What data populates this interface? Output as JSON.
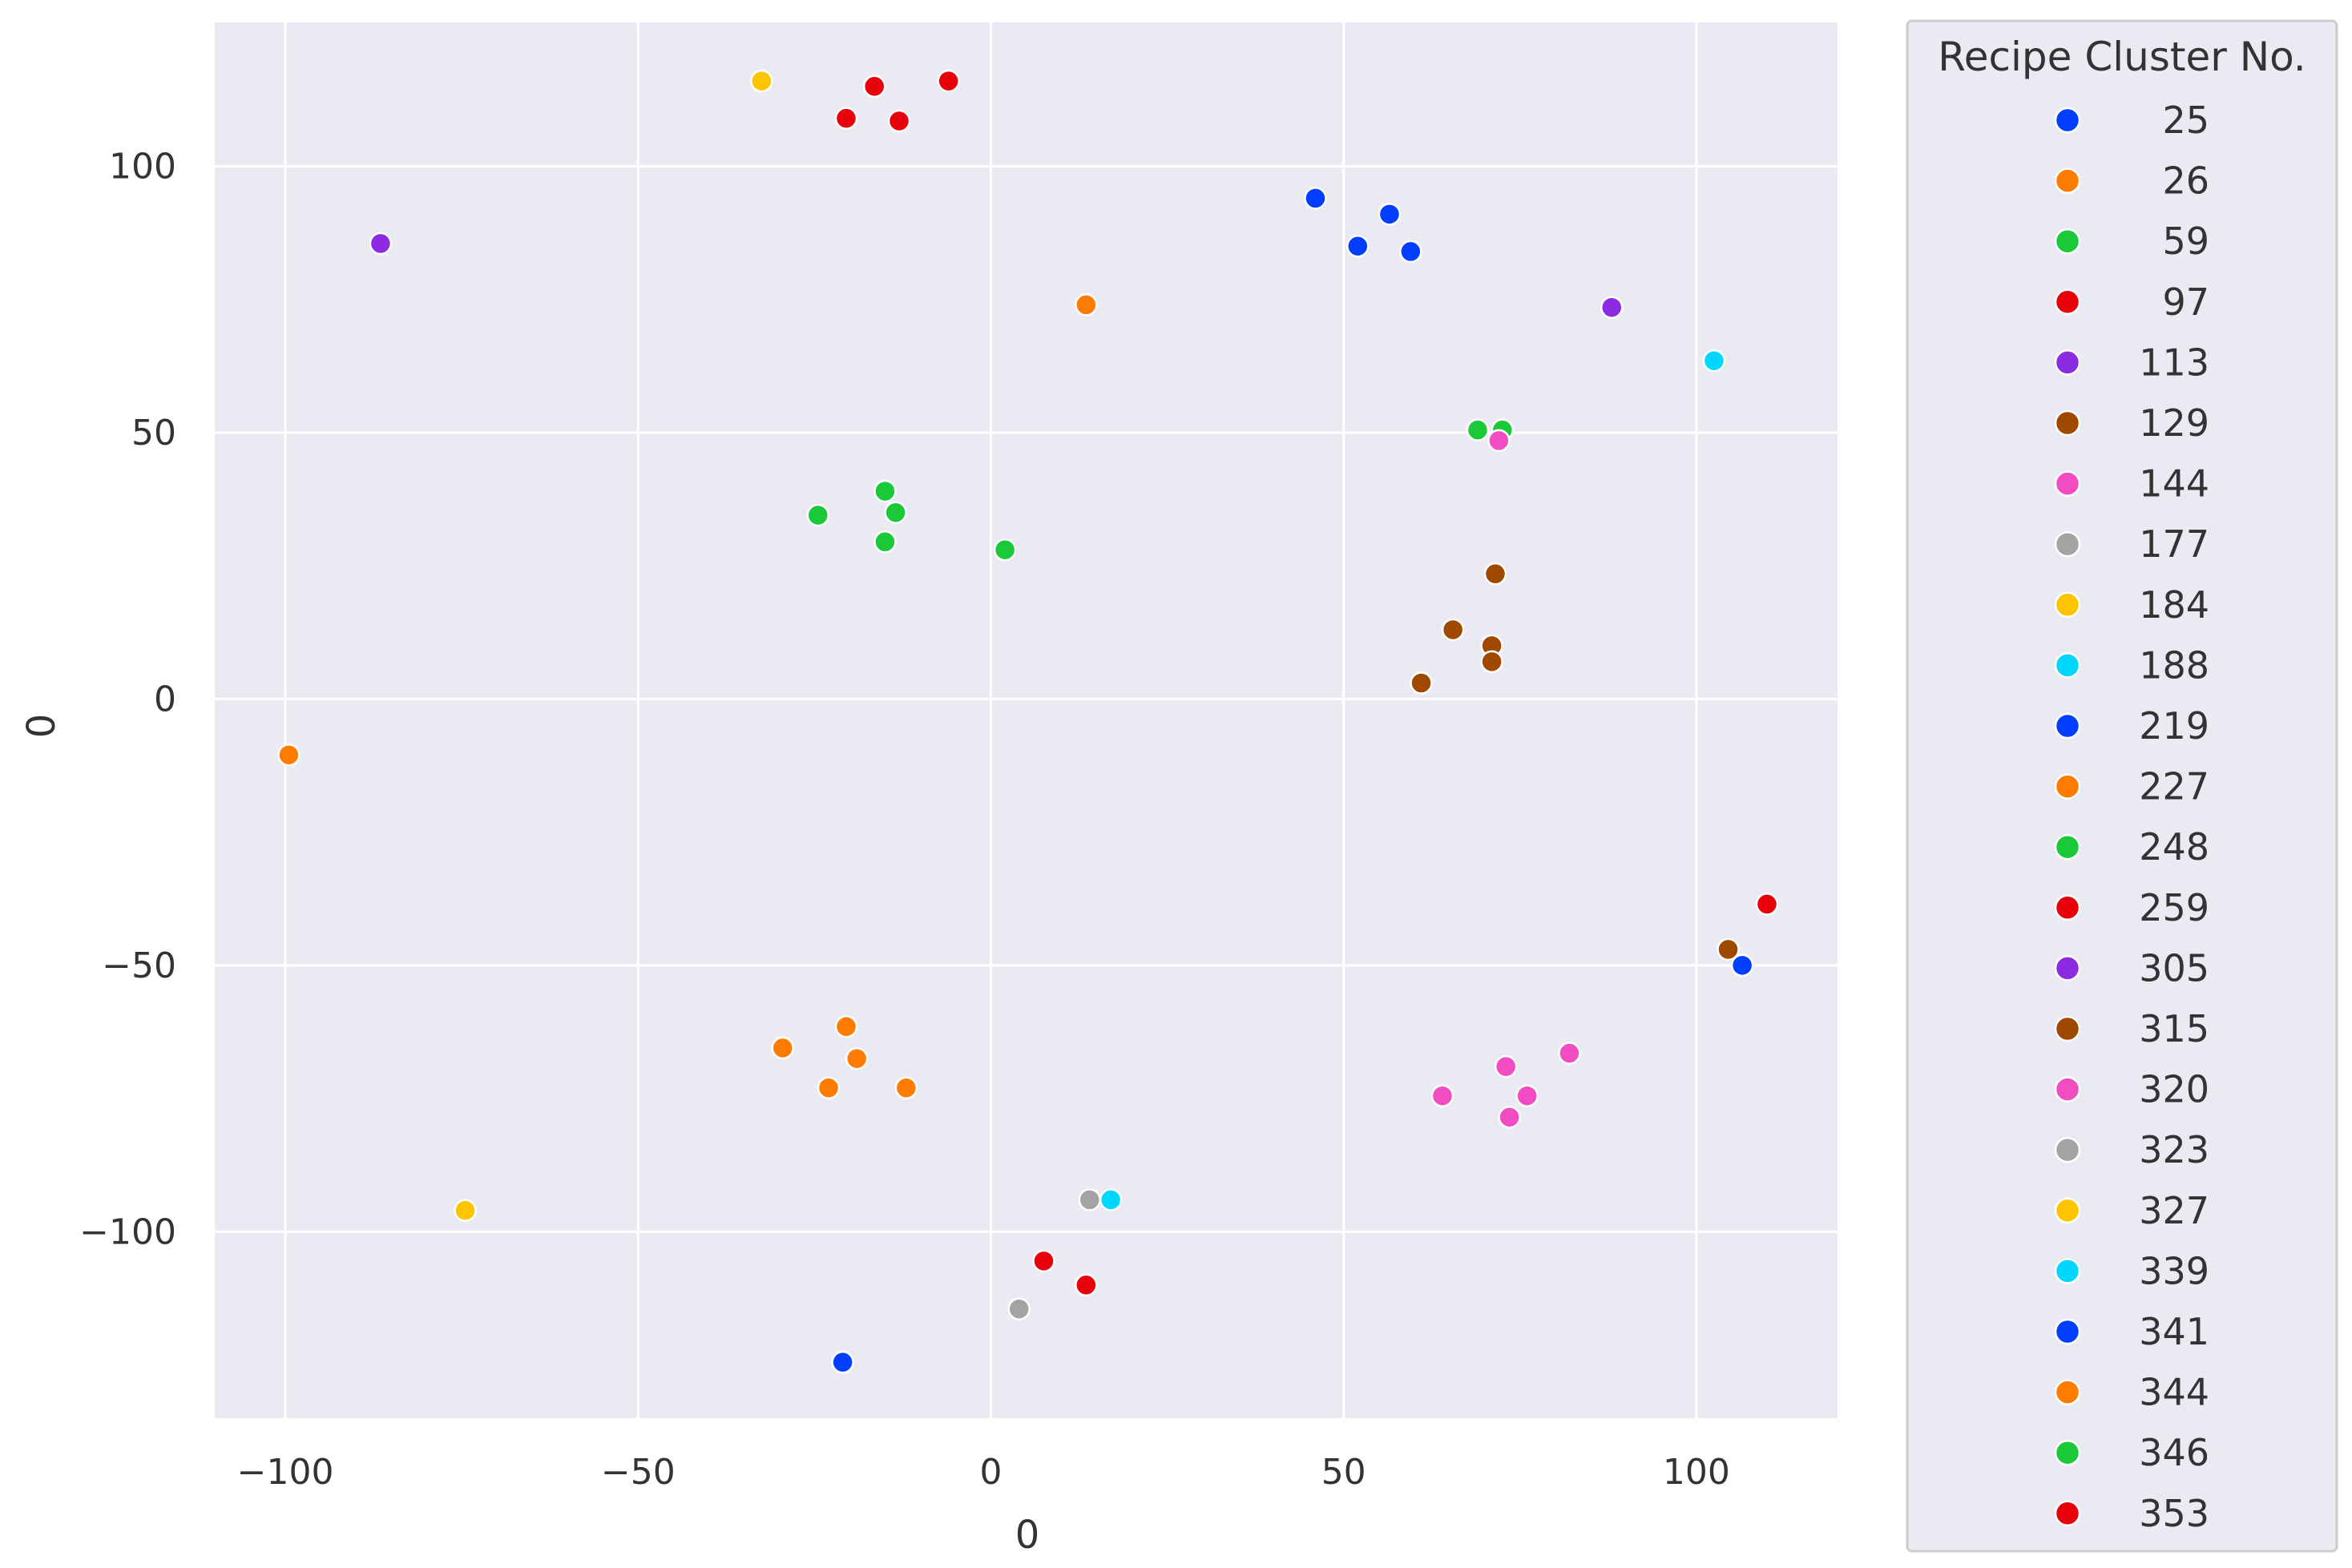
{
  "chart_data": {
    "type": "scatter",
    "title": "",
    "xlabel": "0",
    "ylabel": "0",
    "xlim": [
      -110,
      120
    ],
    "ylim": [
      -135,
      127
    ],
    "x_ticks": [
      -100,
      -50,
      0,
      50,
      100
    ],
    "y_ticks": [
      100,
      50,
      0,
      -50,
      -100
    ],
    "x_tick_labels": [
      "−100",
      "−50",
      "0",
      "50",
      "100"
    ],
    "y_tick_labels": [
      "100",
      "50",
      "0",
      "−50",
      "−100"
    ],
    "grid": true,
    "legend": {
      "title": "Recipe Cluster No.",
      "placement": "outside-right"
    },
    "series": [
      {
        "name": "25",
        "color": "#023eff",
        "points": [
          [
            46,
            94
          ],
          [
            52,
            85
          ],
          [
            56.5,
            91
          ],
          [
            59.5,
            84
          ]
        ]
      },
      {
        "name": "26",
        "color": "#ff7c00",
        "points": [
          [
            13.5,
            74
          ]
        ]
      },
      {
        "name": "59",
        "color": "#1ac938",
        "points": [
          [
            69,
            50.5
          ],
          [
            72.5,
            50.5
          ]
        ]
      },
      {
        "name": "97",
        "color": "#e8000b",
        "points": [
          [
            -20.5,
            109
          ],
          [
            -16.5,
            115
          ],
          [
            -13,
            108.5
          ],
          [
            -6,
            116
          ]
        ]
      },
      {
        "name": "113",
        "color": "#8b2be2",
        "points": [
          [
            88,
            73.5
          ]
        ]
      },
      {
        "name": "129",
        "color": "#9f4800",
        "points": [
          [
            71.5,
            23.5
          ],
          [
            65.5,
            13
          ],
          [
            71,
            10
          ],
          [
            71,
            7
          ],
          [
            61,
            3
          ]
        ]
      },
      {
        "name": "144",
        "color": "#f14cc1",
        "points": [
          [
            72,
            48.5
          ]
        ]
      },
      {
        "name": "177",
        "color": "#a3a3a3",
        "points": []
      },
      {
        "name": "184",
        "color": "#ffc400",
        "points": [
          [
            -32.5,
            116
          ]
        ]
      },
      {
        "name": "188",
        "color": "#00d7ff",
        "points": [
          [
            102.5,
            63.5
          ]
        ]
      },
      {
        "name": "219",
        "color": "#023eff",
        "points": [
          [
            106.5,
            -50
          ]
        ]
      },
      {
        "name": "227",
        "color": "#ff7c00",
        "points": [
          [
            -99.5,
            -10.5
          ]
        ]
      },
      {
        "name": "248",
        "color": "#1ac938",
        "points": [
          [
            -24.5,
            34.5
          ],
          [
            -15,
            39
          ],
          [
            -13.5,
            35
          ],
          [
            -15,
            29.5
          ],
          [
            2,
            28
          ]
        ]
      },
      {
        "name": "259",
        "color": "#e8000b",
        "points": [
          [
            110,
            -38.5
          ]
        ]
      },
      {
        "name": "305",
        "color": "#8b2be2",
        "points": [
          [
            -86.5,
            85.5
          ]
        ]
      },
      {
        "name": "315",
        "color": "#9f4800",
        "points": [
          [
            104.5,
            -47
          ]
        ]
      },
      {
        "name": "320",
        "color": "#f14cc1",
        "points": [
          [
            82,
            -66.5
          ],
          [
            73,
            -69
          ],
          [
            76,
            -74.5
          ],
          [
            64,
            -74.5
          ],
          [
            73.5,
            -78.5
          ]
        ]
      },
      {
        "name": "323",
        "color": "#a3a3a3",
        "points": [
          [
            14,
            -94
          ],
          [
            4,
            -114.5
          ]
        ]
      },
      {
        "name": "327",
        "color": "#ffc400",
        "points": [
          [
            -74.5,
            -96
          ]
        ]
      },
      {
        "name": "339",
        "color": "#00d7ff",
        "points": [
          [
            17,
            -94
          ]
        ]
      },
      {
        "name": "341",
        "color": "#023eff",
        "points": [
          [
            -21,
            -124.5
          ]
        ]
      },
      {
        "name": "344",
        "color": "#ff7c00",
        "points": [
          [
            -20.5,
            -61.5
          ],
          [
            -29.5,
            -65.5
          ],
          [
            -19,
            -67.5
          ],
          [
            -23,
            -73
          ],
          [
            -12,
            -73
          ]
        ]
      },
      {
        "name": "346",
        "color": "#1ac938",
        "points": []
      },
      {
        "name": "353",
        "color": "#e8000b",
        "points": [
          [
            7.5,
            -105.5
          ],
          [
            13.5,
            -110
          ]
        ]
      }
    ]
  }
}
